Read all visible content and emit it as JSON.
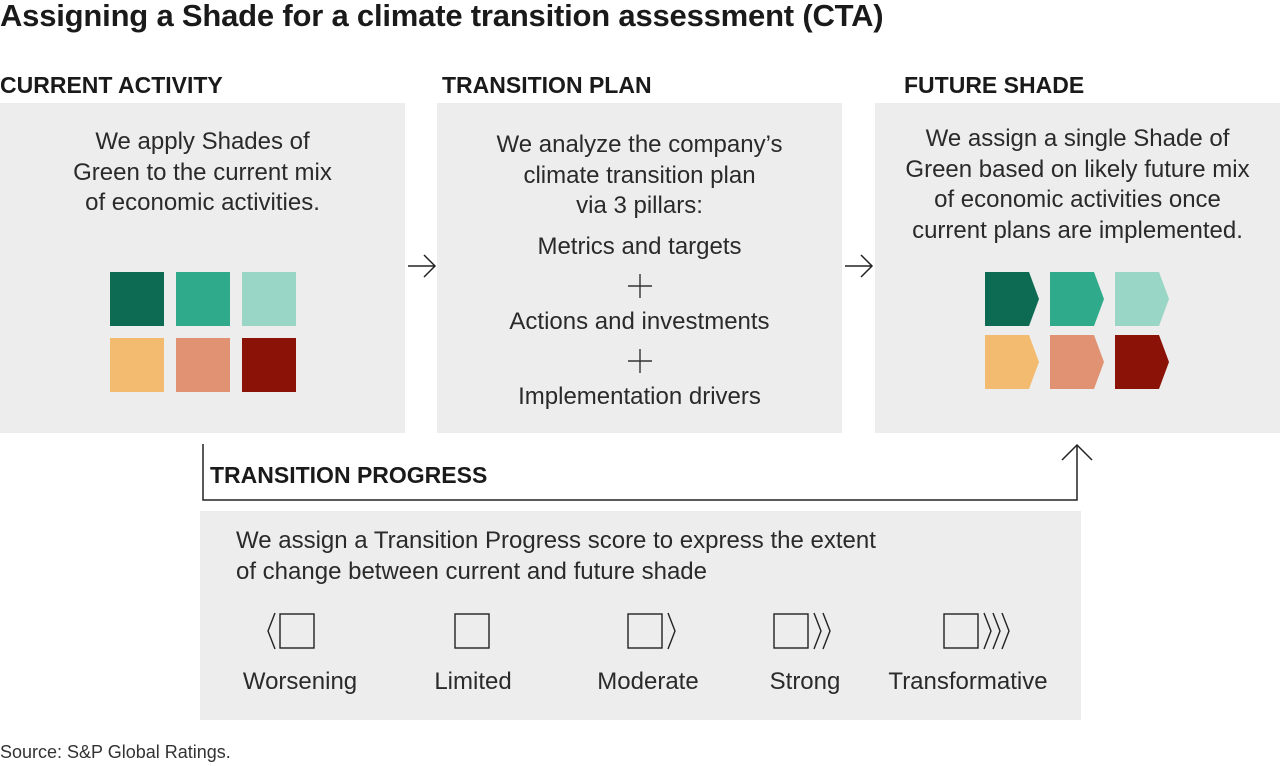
{
  "title": "Assigning a Shade for a climate transition assessment (CTA)",
  "columns": {
    "current": {
      "heading": "CURRENT ACTIVITY",
      "text": "We apply Shades of\nGreen to the current mix\nof economic activities."
    },
    "plan": {
      "heading": "TRANSITION PLAN",
      "text": "We analyze the company’s\nclimate transition plan\nvia 3 pillars:",
      "pillars": [
        "Metrics and targets",
        "Actions and investments",
        "Implementation drivers"
      ]
    },
    "future": {
      "heading": "FUTURE SHADE",
      "text": "We assign a single Shade of\nGreen based on likely future mix\nof economic activities once\ncurrent plans are implemented."
    }
  },
  "shade_colors": [
    "#0d6b53",
    "#2fab8c",
    "#9ad6c6",
    "#f3bb6f",
    "#e09273",
    "#8b1206"
  ],
  "progress": {
    "heading": "TRANSITION PROGRESS",
    "text": "We assign a Transition Progress score to express the extent\nof change between current and future shade",
    "scores": [
      "Worsening",
      "Limited",
      "Moderate",
      "Strong",
      "Transformative"
    ]
  },
  "source": "Source: S&P Global Ratings."
}
